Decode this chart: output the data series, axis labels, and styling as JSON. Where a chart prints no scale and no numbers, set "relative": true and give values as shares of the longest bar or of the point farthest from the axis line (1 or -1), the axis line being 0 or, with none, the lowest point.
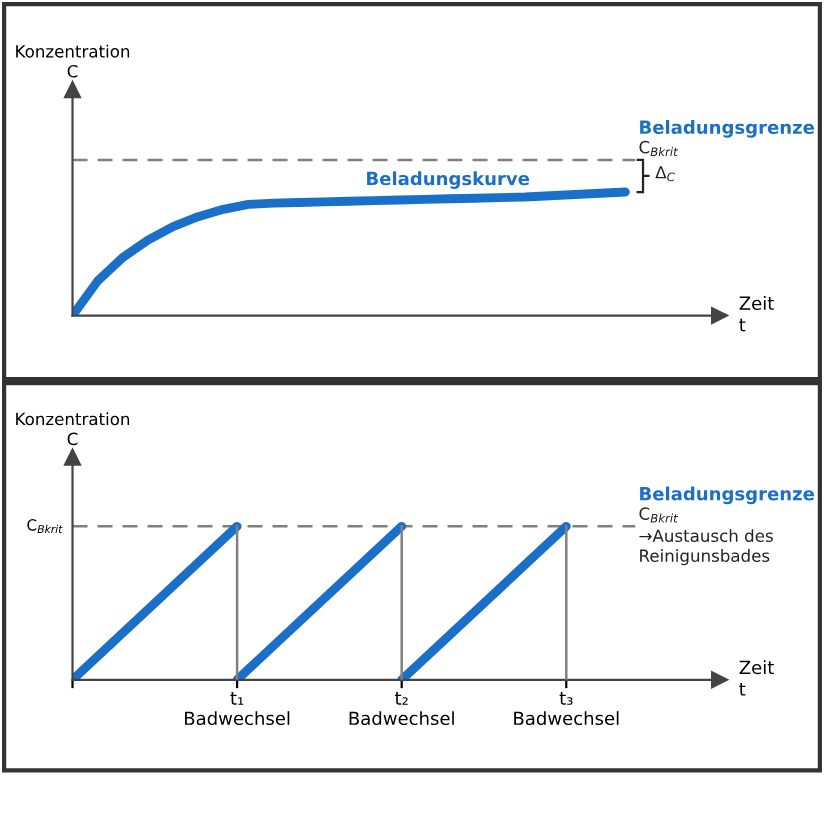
{
  "chart_data": [
    {
      "type": "line",
      "relative": true,
      "ylabel": "Konzentration\nC",
      "xlabel": "Zeit\nt",
      "tick_labels": false,
      "marker": "none",
      "line_style": "solid",
      "categories": [
        null,
        null,
        null,
        null,
        null,
        null,
        null,
        null,
        null,
        null,
        null,
        null,
        null,
        null,
        null,
        null,
        null,
        null,
        null,
        null,
        null,
        null,
        null
      ],
      "series": [
        {
          "color": "#1a6fc9",
          "values": [
            0,
            0.28,
            0.47,
            0.61,
            0.72,
            0.8,
            0.86,
            0.9,
            0.91,
            0.915,
            0.92,
            0.925,
            0.93,
            0.935,
            0.94,
            0.945,
            0.95,
            0.955,
            0.96,
            0.97,
            0.98,
            0.99,
            1
          ]
        }
      ],
      "ref_lines": [
        {
          "axis": "y",
          "value": 1.26,
          "label": "C$_{Bkrit}$",
          "color": "#808080",
          "line_style": "dashed"
        }
      ],
      "annotations": [
        "Beladungsgrenze",
        "Δ$_{C}$",
        "Beladungskurve"
      ]
    },
    {
      "type": "line",
      "relative": true,
      "ylabel": "Konzentration\nC",
      "xlabel": "Zeit\nt",
      "tick_labels": "x",
      "marker": "none",
      "line_style": "solid",
      "categories": [
        null,
        "t₁\nBadwechsel",
        "t₂\nBadwechsel",
        "t₃\nBadwechsel"
      ],
      "series": [
        {
          "color": "#1a6fc9",
          "values": [
            0,
            1,
            null,
            null
          ]
        },
        {
          "color": "#1a6fc9",
          "values": [
            null,
            0,
            1,
            null
          ]
        },
        {
          "color": "#1a6fc9",
          "values": [
            null,
            null,
            0,
            1
          ]
        }
      ],
      "ref_lines": [
        {
          "axis": "y",
          "value": 1,
          "label": "C$_{Bkrit}$",
          "color": "#808080",
          "line_style": "dashed"
        },
        {
          "axis": "x",
          "value": "t₁\nBadwechsel",
          "color": "#808080",
          "line_style": "solid"
        },
        {
          "axis": "x",
          "value": "t₂\nBadwechsel",
          "color": "#808080",
          "line_style": "solid"
        },
        {
          "axis": "x",
          "value": "t₃\nBadwechsel",
          "color": "#808080",
          "line_style": "solid"
        }
      ],
      "annotations": [
        "Beladungsgrenze",
        "C$_{Bkrit}$",
        "→Austausch des\nReinigunsbades"
      ]
    }
  ]
}
